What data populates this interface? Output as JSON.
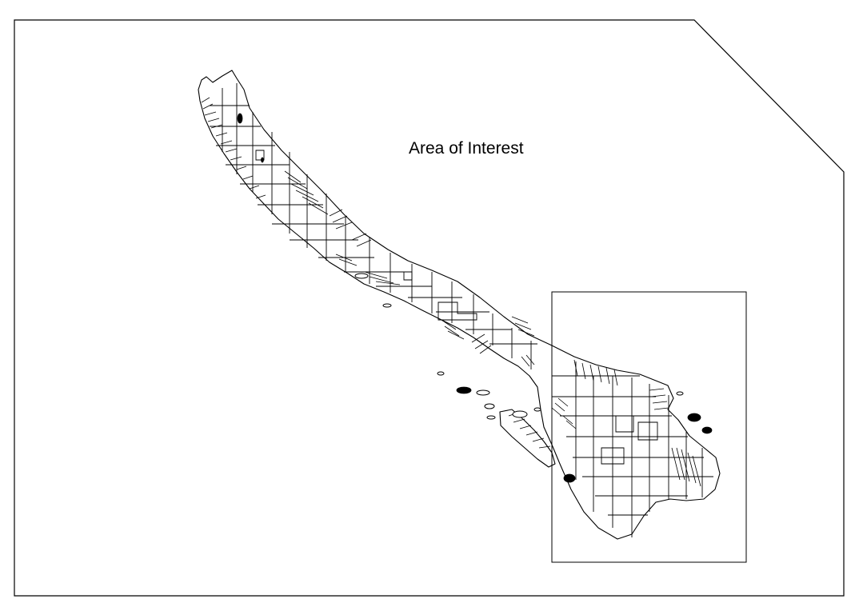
{
  "map": {
    "label": "Area of Interest",
    "colors": {
      "background": "#ffffff",
      "line": "#000000"
    },
    "layers": [
      "land-parcels",
      "islands",
      "area-of-interest-box"
    ]
  }
}
